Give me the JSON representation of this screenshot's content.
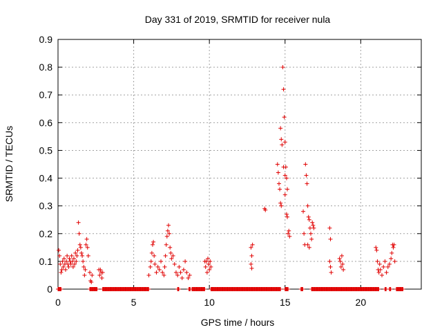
{
  "chart_data": {
    "type": "scatter",
    "title": "Day 331 of 2019, SRMTID for receiver nula",
    "xlabel": "GPS time / hours",
    "ylabel": "SRMTID / TECUs",
    "xlim": [
      0,
      24
    ],
    "ylim": [
      0,
      0.9
    ],
    "xticks": [
      "0",
      "5",
      "10",
      "15",
      "20"
    ],
    "yticks": [
      "0",
      "0.1",
      "0.2",
      "0.3",
      "0.4",
      "0.5",
      "0.6",
      "0.7",
      "0.8",
      "0.9"
    ],
    "grid": true,
    "marker": "+",
    "color": "#e00000",
    "series": [
      {
        "name": "SRMTID",
        "points": [
          [
            0.05,
            0.14
          ],
          [
            0.1,
            0.12
          ],
          [
            0.15,
            0.09
          ],
          [
            0.2,
            0.06
          ],
          [
            0.25,
            0.07
          ],
          [
            0.3,
            0.1
          ],
          [
            0.35,
            0.08
          ],
          [
            0.4,
            0.11
          ],
          [
            0.45,
            0.09
          ],
          [
            0.5,
            0.07
          ],
          [
            0.55,
            0.1
          ],
          [
            0.6,
            0.12
          ],
          [
            0.65,
            0.09
          ],
          [
            0.7,
            0.08
          ],
          [
            0.75,
            0.11
          ],
          [
            0.8,
            0.1
          ],
          [
            0.85,
            0.09
          ],
          [
            0.9,
            0.12
          ],
          [
            0.95,
            0.1
          ],
          [
            1.0,
            0.08
          ],
          [
            1.05,
            0.11
          ],
          [
            1.1,
            0.09
          ],
          [
            1.15,
            0.13
          ],
          [
            1.2,
            0.1
          ],
          [
            1.25,
            0.12
          ],
          [
            1.3,
            0.14
          ],
          [
            1.35,
            0.24
          ],
          [
            1.4,
            0.2
          ],
          [
            1.45,
            0.16
          ],
          [
            1.5,
            0.15
          ],
          [
            1.55,
            0.13
          ],
          [
            1.6,
            0.12
          ],
          [
            1.65,
            0.1
          ],
          [
            1.7,
            0.08
          ],
          [
            1.75,
            0.05
          ],
          [
            1.8,
            0.07
          ],
          [
            1.85,
            0.16
          ],
          [
            1.9,
            0.18
          ],
          [
            1.95,
            0.15
          ],
          [
            2.0,
            0.12
          ],
          [
            2.1,
            0.06
          ],
          [
            2.15,
            0.03
          ],
          [
            2.2,
            0.025
          ],
          [
            2.25,
            0.05
          ],
          [
            2.7,
            0.07
          ],
          [
            2.75,
            0.05
          ],
          [
            2.8,
            0.07
          ],
          [
            2.85,
            0.06
          ],
          [
            2.9,
            0.04
          ],
          [
            2.95,
            0.06
          ],
          [
            6.0,
            0.05
          ],
          [
            6.1,
            0.08
          ],
          [
            6.15,
            0.1
          ],
          [
            6.2,
            0.13
          ],
          [
            6.25,
            0.16
          ],
          [
            6.3,
            0.17
          ],
          [
            6.35,
            0.12
          ],
          [
            6.4,
            0.09
          ],
          [
            6.5,
            0.06
          ],
          [
            6.6,
            0.08
          ],
          [
            6.7,
            0.07
          ],
          [
            6.8,
            0.1
          ],
          [
            6.9,
            0.06
          ],
          [
            7.0,
            0.05
          ],
          [
            7.05,
            0.08
          ],
          [
            7.1,
            0.12
          ],
          [
            7.15,
            0.16
          ],
          [
            7.2,
            0.19
          ],
          [
            7.25,
            0.21
          ],
          [
            7.3,
            0.23
          ],
          [
            7.35,
            0.2
          ],
          [
            7.4,
            0.15
          ],
          [
            7.45,
            0.13
          ],
          [
            7.5,
            0.11
          ],
          [
            7.6,
            0.12
          ],
          [
            7.7,
            0.09
          ],
          [
            7.8,
            0.06
          ],
          [
            7.9,
            0.05
          ],
          [
            8.0,
            0.08
          ],
          [
            8.1,
            0.06
          ],
          [
            8.2,
            0.04
          ],
          [
            8.3,
            0.07
          ],
          [
            8.4,
            0.1
          ],
          [
            8.5,
            0.06
          ],
          [
            8.6,
            0.04
          ],
          [
            8.7,
            0.05
          ],
          [
            9.7,
            0.1
          ],
          [
            9.75,
            0.08
          ],
          [
            9.8,
            0.1
          ],
          [
            9.85,
            0.06
          ],
          [
            9.9,
            0.11
          ],
          [
            9.95,
            0.09
          ],
          [
            10.0,
            0.07
          ],
          [
            10.05,
            0.1
          ],
          [
            10.1,
            0.08
          ],
          [
            12.75,
            0.15
          ],
          [
            12.8,
            0.12
          ],
          [
            12.75,
            0.09
          ],
          [
            12.8,
            0.075
          ],
          [
            12.85,
            0.16
          ],
          [
            13.65,
            0.29
          ],
          [
            13.7,
            0.285
          ],
          [
            14.5,
            0.45
          ],
          [
            14.55,
            0.42
          ],
          [
            14.6,
            0.38
          ],
          [
            14.65,
            0.36
          ],
          [
            14.7,
            0.58
          ],
          [
            14.75,
            0.54
          ],
          [
            14.8,
            0.52
          ],
          [
            14.85,
            0.8
          ],
          [
            14.9,
            0.72
          ],
          [
            14.95,
            0.62
          ],
          [
            15.0,
            0.53
          ],
          [
            15.05,
            0.44
          ],
          [
            15.1,
            0.4
          ],
          [
            15.15,
            0.36
          ],
          [
            14.7,
            0.31
          ],
          [
            14.75,
            0.3
          ],
          [
            15.0,
            0.34
          ],
          [
            15.1,
            0.27
          ],
          [
            15.15,
            0.26
          ],
          [
            15.2,
            0.2
          ],
          [
            15.25,
            0.21
          ],
          [
            15.3,
            0.19
          ],
          [
            14.9,
            0.44
          ],
          [
            15.0,
            0.41
          ],
          [
            16.2,
            0.28
          ],
          [
            16.25,
            0.2
          ],
          [
            16.3,
            0.16
          ],
          [
            16.35,
            0.45
          ],
          [
            16.4,
            0.41
          ],
          [
            16.45,
            0.38
          ],
          [
            16.5,
            0.3
          ],
          [
            16.55,
            0.26
          ],
          [
            16.6,
            0.25
          ],
          [
            16.65,
            0.22
          ],
          [
            16.7,
            0.2
          ],
          [
            16.75,
            0.18
          ],
          [
            16.5,
            0.16
          ],
          [
            16.6,
            0.15
          ],
          [
            16.8,
            0.24
          ],
          [
            16.85,
            0.23
          ],
          [
            16.9,
            0.22
          ],
          [
            17.95,
            0.22
          ],
          [
            18.0,
            0.18
          ],
          [
            17.95,
            0.1
          ],
          [
            18.0,
            0.08
          ],
          [
            18.05,
            0.06
          ],
          [
            18.6,
            0.11
          ],
          [
            18.65,
            0.1
          ],
          [
            18.7,
            0.08
          ],
          [
            18.75,
            0.12
          ],
          [
            18.8,
            0.09
          ],
          [
            18.85,
            0.07
          ],
          [
            21.0,
            0.15
          ],
          [
            21.05,
            0.14
          ],
          [
            21.1,
            0.1
          ],
          [
            21.15,
            0.07
          ],
          [
            21.2,
            0.06
          ],
          [
            21.25,
            0.09
          ],
          [
            21.3,
            0.07
          ],
          [
            21.4,
            0.05
          ],
          [
            21.5,
            0.08
          ],
          [
            21.6,
            0.1
          ],
          [
            21.7,
            0.06
          ],
          [
            21.8,
            0.08
          ],
          [
            21.9,
            0.09
          ],
          [
            22.0,
            0.11
          ],
          [
            22.05,
            0.13
          ],
          [
            22.1,
            0.16
          ],
          [
            22.15,
            0.15
          ],
          [
            22.2,
            0.16
          ],
          [
            22.25,
            0.1
          ]
        ]
      }
    ],
    "zero_segments": [
      [
        0.0,
        0.2
      ],
      [
        2.1,
        2.6
      ],
      [
        2.95,
        6.0
      ],
      [
        7.9,
        8.0
      ],
      [
        8.65,
        8.75
      ],
      [
        8.85,
        9.7
      ],
      [
        10.1,
        14.7
      ],
      [
        15.0,
        15.2
      ],
      [
        16.05,
        16.2
      ],
      [
        16.75,
        21.2
      ],
      [
        21.6,
        21.7
      ],
      [
        21.9,
        22.0
      ],
      [
        22.35,
        22.8
      ]
    ]
  }
}
